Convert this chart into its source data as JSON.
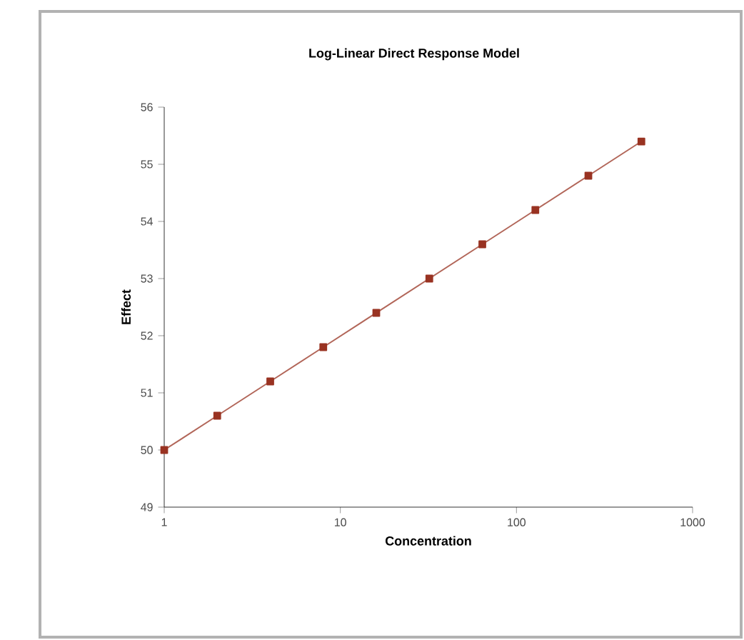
{
  "chart_data": {
    "type": "line",
    "title": "Log-Linear Direct Response Model",
    "xlabel": "Concentration",
    "ylabel": "Effect",
    "x": [
      1,
      2,
      4,
      8,
      16,
      32,
      64,
      128,
      256,
      512
    ],
    "series": [
      {
        "color": "#993322",
        "values": [
          50.0,
          50.6,
          51.2,
          51.8,
          52.4,
          53.0,
          53.6,
          54.2,
          54.8,
          55.4
        ]
      }
    ],
    "log": "x",
    "marker": "square",
    "line_style": "solid",
    "xlim": [
      1,
      1000
    ],
    "xticks": [
      1,
      10,
      100,
      1000
    ],
    "ylim": [
      49,
      56
    ],
    "yticks": [
      49,
      50,
      51,
      52,
      53,
      54,
      55,
      56
    ],
    "grid": false
  }
}
